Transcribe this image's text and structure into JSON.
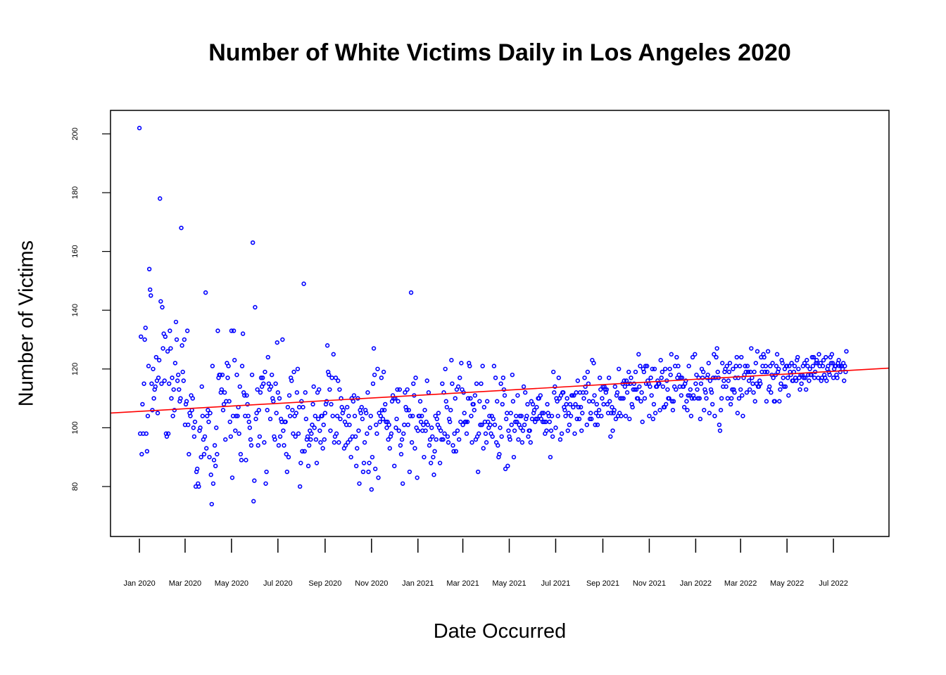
{
  "chart_data": {
    "type": "scatter",
    "title": "Number of White Victims Daily in Los Angeles 2020",
    "xlabel": "Date Occurred",
    "ylabel": "Number of Victims",
    "x_ticks": [
      "2020-01-01",
      "2020-03-01",
      "2020-05-01",
      "2020-07-01",
      "2020-09-01",
      "2020-11-01",
      "2021-01-01",
      "2021-03-01",
      "2021-05-01",
      "2021-07-01",
      "2021-09-01",
      "2021-11-01",
      "2022-01-01",
      "2022-03-01",
      "2022-05-01",
      "2022-07-01"
    ],
    "x_tick_labels": [
      "Jan 2020",
      "Mar 2020",
      "May 2020",
      "Jul 2020",
      "Sep 2020",
      "Nov 2020",
      "Jan 2021",
      "Mar 2021",
      "May 2021",
      "Jul 2021",
      "Sep 2021",
      "Nov 2021",
      "Jan 2022",
      "Mar 2022",
      "May 2022",
      "Jul 2022"
    ],
    "y_ticks": [
      80,
      100,
      120,
      140,
      160,
      180,
      200
    ],
    "xlim": [
      "2019-11-24",
      "2022-09-12"
    ],
    "ylim": [
      63,
      208
    ],
    "grid": false,
    "legend": "none",
    "series": [
      {
        "marker": "open-circle",
        "color": "#0000ff",
        "x_start": "2020-01-01",
        "x_step_days": 1,
        "y": [
          202,
          98,
          131,
          91,
          108,
          98,
          115,
          130,
          134,
          98,
          92,
          104,
          121,
          154,
          147,
          145,
          115,
          106,
          120,
          110,
          113,
          114,
          124,
          116,
          105,
          117,
          123,
          178,
          143,
          115,
          141,
          127,
          132,
          116,
          131,
          98,
          97,
          126,
          98,
          115,
          133,
          127,
          110,
          117,
          104,
          113,
          106,
          122,
          136,
          130,
          116,
          118,
          113,
          109,
          110,
          168,
          128,
          119,
          116,
          130,
          101,
          108,
          109,
          133,
          101,
          91,
          105,
          104,
          111,
          106,
          110,
          100,
          97,
          102,
          80,
          85,
          86,
          81,
          80,
          99,
          100,
          90,
          114,
          104,
          96,
          91,
          97,
          146,
          93,
          104,
          106,
          102,
          90,
          105,
          84,
          74,
          121,
          81,
          89,
          94,
          87,
          100,
          91,
          133,
          117,
          118,
          118,
          112,
          113,
          118,
          106,
          108,
          112,
          96,
          109,
          122,
          117,
          121,
          109,
          102,
          97,
          133,
          83,
          104,
          133,
          123,
          99,
          104,
          118,
          104,
          107,
          98,
          114,
          91,
          89,
          121,
          132,
          112,
          111,
          104,
          89,
          111,
          108,
          104,
          102,
          100,
          96,
          94,
          118,
          163,
          75,
          82,
          141,
          103,
          105,
          113,
          94,
          106,
          97,
          112,
          117,
          114,
          117,
          115,
          95,
          119,
          81,
          85,
          106,
          124,
          115,
          113,
          103,
          114,
          118,
          110,
          109,
          97,
          96,
          115,
          105,
          129,
          112,
          94,
          110,
          97,
          103,
          102,
          130,
          99,
          94,
          102,
          102,
          91,
          85,
          107,
          90,
          111,
          104,
          117,
          116,
          106,
          98,
          119,
          104,
          97,
          105,
          112,
          120,
          98,
          107,
          80,
          88,
          109,
          92,
          107,
          149,
          92,
          112,
          103,
          96,
          97,
          87,
          94,
          99,
          96,
          98,
          101,
          108,
          114,
          100,
          104,
          96,
          88,
          112,
          103,
          113,
          99,
          95,
          104,
          104,
          93,
          101,
          96,
          105,
          108,
          109,
          128,
          119,
          118,
          113,
          99,
          108,
          117,
          104,
          125,
          95,
          97,
          117,
          98,
          104,
          116,
          95,
          113,
          103,
          110,
          107,
          105,
          106,
          93,
          102,
          94,
          101,
          107,
          95,
          104,
          101,
          96,
          90,
          110,
          97,
          109,
          111,
          104,
          97,
          87,
          93,
          110,
          99,
          81,
          106,
          105,
          107,
          103,
          85,
          88,
          95,
          106,
          105,
          98,
          112,
          85,
          88,
          100,
          104,
          79,
          90,
          115,
          127,
          118,
          86,
          101,
          98,
          120,
          83,
          105,
          102,
          104,
          117,
          106,
          103,
          119,
          106,
          108,
          102,
          100,
          102,
          96,
          101,
          93,
          97,
          98,
          109,
          111,
          110,
          87,
          110,
          100,
          103,
          113,
          109,
          99,
          113,
          94,
          91,
          96,
          81,
          98,
          101,
          112,
          107,
          106,
          113,
          101,
          106,
          85,
          104,
          146,
          95,
          104,
          115,
          111,
          93,
          117,
          100,
          83,
          99,
          104,
          104,
          109,
          102,
          104,
          99,
          101,
          90,
          106,
          99,
          102,
          116,
          101,
          112,
          94,
          96,
          88,
          100,
          97,
          90,
          84,
          92,
          104,
          96,
          103,
          101,
          105,
          100,
          88,
          99,
          96,
          115,
          96,
          112,
          98,
          120,
          109,
          107,
          97,
          95,
          103,
          102,
          106,
          123,
          115,
          94,
          92,
          98,
          110,
          92,
          113,
          99,
          114,
          96,
          117,
          102,
          122,
          113,
          101,
          112,
          105,
          102,
          102,
          98,
          102,
          110,
          122,
          121,
          110,
          104,
          95,
          108,
          108,
          106,
          111,
          96,
          115,
          97,
          85,
          98,
          109,
          101,
          115,
          101,
          121,
          93,
          107,
          102,
          98,
          95,
          109,
          102,
          100,
          104,
          101,
          98,
          104,
          97,
          103,
          121,
          101,
          117,
          95,
          109,
          94,
          90,
          91,
          100,
          115,
          97,
          108,
          117,
          113,
          111,
          86,
          103,
          105,
          87,
          99,
          97,
          96,
          105,
          101,
          118,
          109,
          90,
          99,
          102,
          104,
          102,
          111,
          96,
          101,
          104,
          100,
          104,
          95,
          99,
          114,
          101,
          112,
          103,
          104,
          108,
          97,
          99,
          99,
          95,
          109,
          103,
          108,
          105,
          106,
          102,
          103,
          107,
          103,
          110,
          110,
          104,
          111,
          103,
          105,
          102,
          105,
          102,
          98,
          102,
          99,
          108,
          105,
          104,
          102,
          90,
          99,
          104,
          97,
          119,
          112,
          114,
          100,
          110,
          109,
          104,
          117,
          110,
          96,
          111,
          98,
          112,
          112,
          107,
          106,
          104,
          108,
          110,
          99,
          105,
          101,
          108,
          104,
          111,
          111,
          107,
          111,
          98,
          108,
          112,
          103,
          116,
          107,
          103,
          112,
          107,
          99,
          105,
          112,
          110,
          117,
          114,
          112,
          101,
          119,
          115,
          109,
          103,
          105,
          103,
          123,
          109,
          122,
          111,
          101,
          105,
          108,
          101,
          104,
          106,
          117,
          113,
          104,
          110,
          114,
          108,
          114,
          113,
          112,
          113,
          108,
          105,
          117,
          109,
          97,
          105,
          107,
          99,
          105,
          106,
          114,
          103,
          111,
          112,
          104,
          120,
          105,
          110,
          104,
          110,
          115,
          110,
          116,
          114,
          104,
          116,
          112,
          115,
          119,
          103,
          115,
          117,
          108,
          107,
          113,
          115,
          113,
          119,
          113,
          110,
          110,
          125,
          114,
          121,
          109,
          112,
          102,
          120,
          119,
          110,
          121,
          115,
          121,
          116,
          115,
          104,
          114,
          117,
          111,
          120,
          103,
          108,
          120,
          105,
          114,
          114,
          116,
          115,
          115,
          106,
          123,
          117,
          119,
          114,
          107,
          107,
          120,
          108,
          116,
          113,
          110,
          110,
          120,
          118,
          125,
          109,
          106,
          109,
          114,
          121,
          113,
          124,
          117,
          121,
          118,
          114,
          117,
          111,
          117,
          114,
          114,
          107,
          115,
          116,
          109,
          106,
          111,
          121,
          111,
          113,
          104,
          110,
          124,
          111,
          110,
          125,
          115,
          118,
          113,
          110,
          117,
          110,
          103,
          115,
          120,
          117,
          119,
          106,
          113,
          112,
          110,
          117,
          118,
          122,
          105,
          116,
          113,
          112,
          108,
          117,
          125,
          104,
          117,
          124,
          127,
          119,
          117,
          101,
          99,
          106,
          110,
          122,
          114,
          116,
          119,
          120,
          114,
          121,
          110,
          116,
          119,
          122,
          108,
          110,
          113,
          120,
          113,
          112,
          117,
          121,
          124,
          105,
          117,
          110,
          121,
          113,
          124,
          111,
          104,
          117,
          118,
          121,
          119,
          112,
          121,
          119,
          116,
          113,
          119,
          127,
          117,
          115,
          112,
          119,
          109,
          122,
          115,
          126,
          114,
          114,
          116,
          115,
          124,
          119,
          121,
          125,
          124,
          119,
          121,
          109,
          119,
          126,
          113,
          114,
          121,
          112,
          118,
          122,
          117,
          109,
          109,
          118,
          121,
          125,
          119,
          120,
          109,
          113,
          115,
          123,
          122,
          117,
          114,
          120,
          114,
          121,
          121,
          117,
          111,
          121,
          119,
          118,
          122,
          116,
          116,
          119,
          121,
          117,
          116,
          123,
          124,
          120,
          117,
          113,
          118,
          115,
          118,
          121,
          117,
          122,
          117,
          113,
          123,
          121,
          118,
          116,
          120,
          118,
          118,
          124,
          121,
          124,
          117,
          119,
          122,
          123,
          122,
          117,
          125,
          121,
          122,
          116,
          117,
          121,
          123,
          118,
          117,
          124,
          116,
          120,
          121,
          119,
          118,
          124,
          122,
          125,
          122,
          117,
          120,
          121,
          121,
          118,
          117,
          122,
          123,
          121,
          119,
          121,
          121,
          120,
          122,
          116,
          121,
          119,
          126
        ]
      }
    ],
    "trend_line": {
      "color": "#ff0000",
      "x": [
        "2019-11-24",
        "2022-09-12"
      ],
      "y": [
        105,
        120.3
      ]
    }
  }
}
